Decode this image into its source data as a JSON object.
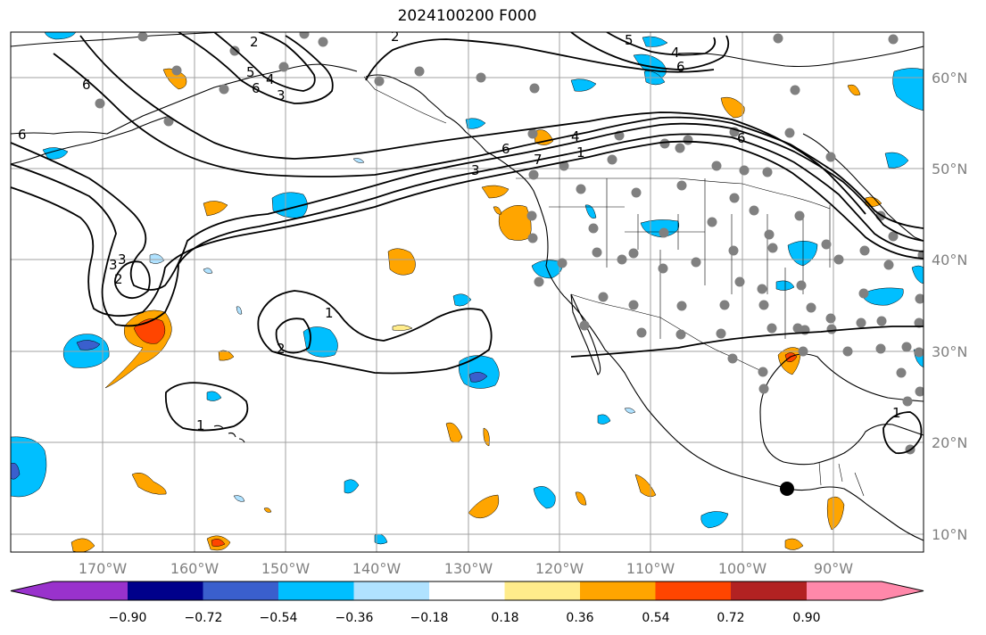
{
  "title": "2024100200 F000",
  "x_ticks": [
    "170°W",
    "160°W",
    "150°W",
    "140°W",
    "130°W",
    "120°W",
    "110°W",
    "100°W",
    "90°W"
  ],
  "y_ticks": [
    "60°N",
    "50°N",
    "40°N",
    "30°N",
    "20°N",
    "10°N"
  ],
  "colorbar": {
    "labels": [
      "−0.90",
      "−0.72",
      "−0.54",
      "−0.36",
      "−0.18",
      "0.18",
      "0.36",
      "0.54",
      "0.72",
      "0.90"
    ],
    "colors": [
      "#9932CC",
      "#00008B",
      "#3A5FCD",
      "#00BFFF",
      "#B0E2FF",
      "#FFFFFF",
      "#FFEC8B",
      "#FFA500",
      "#FF4500",
      "#B22222",
      "#FF88AA"
    ]
  },
  "colors": {
    "grid": "#a0a0a0",
    "coast": "#000000",
    "station": "#808080",
    "marker": "#000000"
  },
  "contour_labels": [
    "6",
    "2",
    "3",
    "4",
    "5",
    "6",
    "6",
    "3",
    "6",
    "7",
    "6",
    "4",
    "5",
    "4",
    "2",
    "6",
    "3",
    "2",
    "3",
    "1",
    "2",
    "1",
    "1",
    "1"
  ]
}
